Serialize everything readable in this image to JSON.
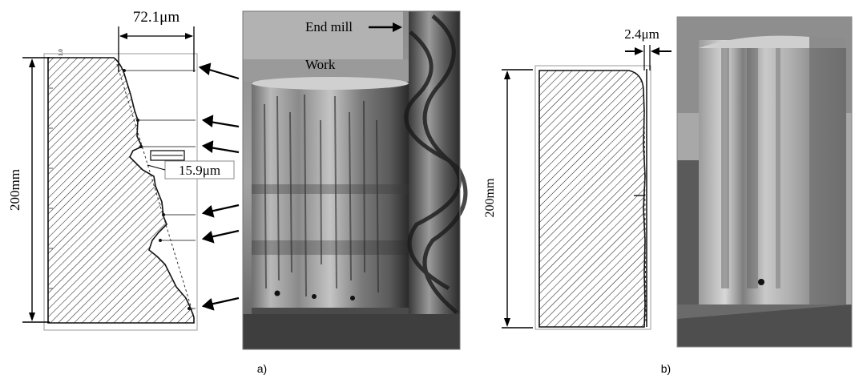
{
  "panel_a": {
    "caption": "a)",
    "dim_top": "72.1μm",
    "dim_mid": "15.9μm",
    "dim_height": "200mm",
    "axis_marker": "1.0",
    "label_end_mill": "End mill",
    "label_work": "Work"
  },
  "panel_b": {
    "caption": "b)",
    "dim_top": "2.4μm",
    "dim_height": "200mm"
  }
}
